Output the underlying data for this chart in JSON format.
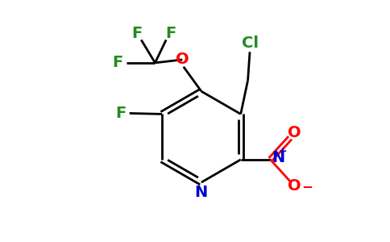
{
  "bg_color": "#ffffff",
  "bond_color": "#000000",
  "atom_colors": {
    "C": "#000000",
    "N": "#0000cc",
    "O": "#ff0000",
    "F": "#228B22",
    "Cl": "#228B22"
  },
  "figsize": [
    4.84,
    3.0
  ],
  "dpi": 100
}
